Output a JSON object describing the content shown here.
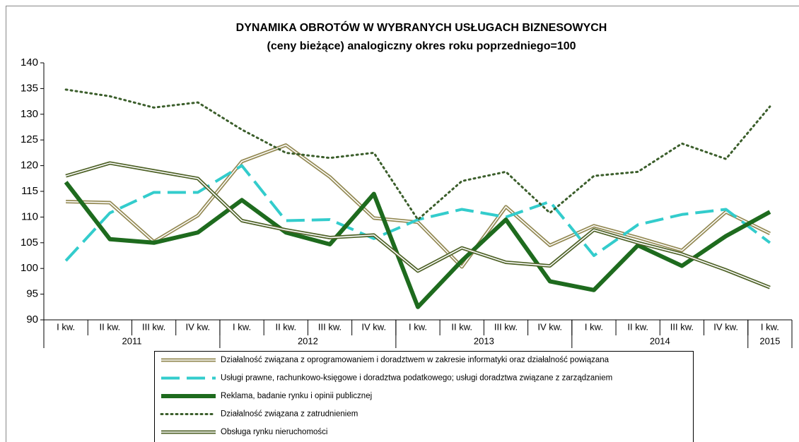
{
  "chart_data": {
    "type": "line",
    "title": "DYNAMIKA OBROTÓW W WYBRANYCH USŁUGACH BIZNESOWYCH",
    "subtitle": "(ceny bieżące)  analogiczny okres roku poprzedniego=100",
    "categories": [
      "I kw.",
      "II kw.",
      "III kw.",
      "IV kw.",
      "I kw.",
      "II kw.",
      "III kw.",
      "IV kw.",
      "I kw.",
      "II kw.",
      "III kw.",
      "IV kw.",
      "I kw.",
      "II kw.",
      "III kw.",
      "IV kw.",
      "I kw."
    ],
    "x_groups": [
      {
        "label": "2011",
        "count": 4
      },
      {
        "label": "2012",
        "count": 4
      },
      {
        "label": "2013",
        "count": 4
      },
      {
        "label": "2014",
        "count": 4
      },
      {
        "label": "2015",
        "count": 1
      }
    ],
    "ylim": [
      90,
      140
    ],
    "yticks": [
      90,
      95,
      100,
      105,
      110,
      115,
      120,
      125,
      130,
      135,
      140
    ],
    "grid": false,
    "legend": "bottom",
    "series": [
      {
        "name": "Działalność związana z oprogramowaniem i doradztwem w zakresie informatyki oraz działalność powiązana",
        "color": "#938953",
        "style": "double",
        "values": [
          113,
          112.8,
          105.2,
          110.3,
          120.8,
          124,
          117.8,
          109.8,
          109,
          100.3,
          112,
          104.5,
          108.3,
          106,
          103.5,
          111,
          106.8
        ]
      },
      {
        "name": "Usługi prawne, rachunkowo-księgowe i doradztwa podatkowego; usługi doradztwa związane z zarządzaniem",
        "color": "#33cccc",
        "style": "dashed",
        "values": [
          101.5,
          110.8,
          114.8,
          114.8,
          120,
          109.3,
          109.5,
          105.8,
          109.5,
          111.5,
          110,
          113,
          102.5,
          108.5,
          110.5,
          111.5,
          105
        ]
      },
      {
        "name": "Reklama, badanie rynku i opinii publicznej",
        "color": "#1e6b1e",
        "style": "solid",
        "values": [
          116.8,
          105.7,
          105,
          107,
          113.3,
          107,
          104.7,
          114.5,
          92.5,
          101.5,
          109.5,
          97.5,
          95.8,
          104.5,
          100.5,
          106.3,
          111
        ]
      },
      {
        "name": "Działalność związana z zatrudnieniem",
        "color": "#3b5e2b",
        "style": "dotted",
        "values": [
          134.8,
          133.5,
          131.3,
          132.3,
          127,
          122.5,
          121.5,
          122.5,
          109.5,
          117,
          118.8,
          110.8,
          118,
          118.8,
          124.3,
          121.3,
          131.5
        ]
      },
      {
        "name": "Obsługa rynku nieruchomości",
        "color": "#4f6228",
        "style": "double",
        "values": [
          118,
          120.5,
          119,
          117.5,
          109.3,
          107.5,
          106,
          106.5,
          99.5,
          104,
          101.2,
          100.5,
          107.5,
          105,
          102.8,
          99.7,
          96.3
        ]
      }
    ]
  }
}
